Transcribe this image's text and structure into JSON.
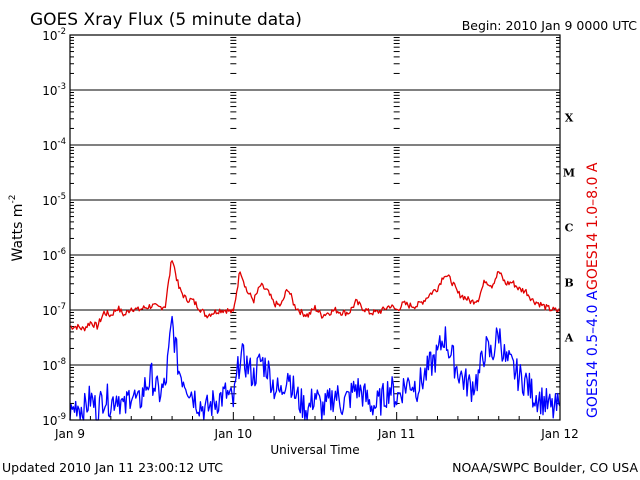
{
  "chart_data": {
    "type": "line",
    "title": "GOES Xray Flux (5 minute data)",
    "begin_label": "Begin:  2010 Jan 9 0000 UTC",
    "xlabel": "Universal Time",
    "ylabel": "Watts m",
    "ylabel_sup": "-2",
    "y_scale": "log",
    "ylim": [
      1e-09,
      0.01
    ],
    "y_ticks": [
      {
        "base": "10",
        "exp": "-2"
      },
      {
        "base": "10",
        "exp": "-3"
      },
      {
        "base": "10",
        "exp": "-4"
      },
      {
        "base": "10",
        "exp": "-5"
      },
      {
        "base": "10",
        "exp": "-6"
      },
      {
        "base": "10",
        "exp": "-7"
      },
      {
        "base": "10",
        "exp": "-8"
      },
      {
        "base": "10",
        "exp": "-9"
      }
    ],
    "x_unit": "hours since 2010 Jan 9 0000 UTC",
    "x_range": [
      0,
      72
    ],
    "x_ticks": [
      {
        "label": "Jan 9",
        "hour": 0
      },
      {
        "label": "Jan 10",
        "hour": 24
      },
      {
        "label": "Jan 11",
        "hour": 48
      },
      {
        "label": "Jan 12",
        "hour": 72
      }
    ],
    "flare_classes": [
      "X",
      "M",
      "C",
      "B",
      "A"
    ],
    "grid": "horizontal at each decade",
    "series": [
      {
        "name": "GOES14 1.0–8.0 A",
        "color": "#e00000",
        "x": [
          0,
          1,
          2,
          3,
          4,
          5,
          6,
          7,
          8,
          9,
          10,
          11,
          12,
          13,
          14,
          15,
          16,
          17,
          18,
          19,
          20,
          21,
          22,
          23,
          24,
          25,
          26,
          27,
          28,
          29,
          30,
          31,
          32,
          33,
          34,
          35,
          36,
          37,
          38,
          39,
          40,
          41,
          42,
          43,
          44,
          45,
          46,
          47,
          48,
          49,
          50,
          51,
          52,
          53,
          54,
          55,
          56,
          57,
          58,
          59,
          60,
          61,
          62,
          63,
          64,
          65,
          66,
          67,
          68,
          69,
          70,
          71,
          72
        ],
        "values": [
          5e-08,
          5e-08,
          4.5e-08,
          6e-08,
          5e-08,
          9e-08,
          8e-08,
          1.1e-07,
          8e-08,
          1.1e-07,
          1e-07,
          1.1e-07,
          1.2e-07,
          1.1e-07,
          1.2e-07,
          9e-07,
          2.5e-07,
          1.6e-07,
          1.5e-07,
          1.1e-07,
          8e-08,
          9e-08,
          1e-07,
          1e-07,
          9e-08,
          5.5e-07,
          2.2e-07,
          1.5e-07,
          2.8e-07,
          2.2e-07,
          1.3e-07,
          1.2e-07,
          2.5e-07,
          1.2e-07,
          9e-08,
          8e-08,
          1.1e-07,
          8e-08,
          9e-08,
          1e-07,
          9e-08,
          9e-08,
          1.4e-07,
          1.1e-07,
          9e-08,
          9e-08,
          1e-07,
          1.2e-07,
          1e-07,
          1.3e-07,
          1.2e-07,
          1.2e-07,
          1.5e-07,
          2e-07,
          2.5e-07,
          4.5e-07,
          3.5e-07,
          2e-07,
          1.7e-07,
          1.4e-07,
          1.6e-07,
          3.5e-07,
          2.8e-07,
          5e-07,
          3e-07,
          3.2e-07,
          2.4e-07,
          2.2e-07,
          1.5e-07,
          1.3e-07,
          1.1e-07,
          1e-07,
          9.5e-08
        ]
      },
      {
        "name": "GOES14 0.5–4.0 A",
        "color": "#0000ff",
        "x": [
          0,
          1,
          2,
          3,
          4,
          5,
          6,
          7,
          8,
          9,
          10,
          11,
          12,
          13,
          14,
          15,
          16,
          17,
          18,
          19,
          20,
          21,
          22,
          23,
          24,
          25,
          26,
          27,
          28,
          29,
          30,
          31,
          32,
          33,
          34,
          35,
          36,
          37,
          38,
          39,
          40,
          41,
          42,
          43,
          44,
          45,
          46,
          47,
          48,
          49,
          50,
          51,
          52,
          53,
          54,
          55,
          56,
          57,
          58,
          59,
          60,
          61,
          62,
          63,
          64,
          65,
          66,
          67,
          68,
          69,
          70,
          71,
          72
        ],
        "values": [
          1.2e-09,
          2e-09,
          1.5e-09,
          2.5e-09,
          1.5e-09,
          2.8e-09,
          2e-09,
          3e-09,
          1.5e-09,
          3.5e-09,
          1.8e-09,
          4e-09,
          6e-09,
          3e-09,
          4e-09,
          6e-08,
          8e-09,
          5e-09,
          3e-09,
          2e-09,
          1.5e-09,
          2e-09,
          2.5e-09,
          3e-09,
          2e-09,
          1.5e-08,
          1e-08,
          6e-09,
          1.2e-08,
          9e-09,
          4e-09,
          3e-09,
          8e-09,
          3e-09,
          2e-09,
          1.5e-09,
          3e-09,
          1.5e-09,
          2e-09,
          3e-09,
          2e-09,
          2.5e-09,
          4e-09,
          3e-09,
          2e-09,
          1.8e-09,
          2.5e-09,
          4e-09,
          2.5e-09,
          4e-09,
          5e-09,
          4e-09,
          6e-09,
          1e-08,
          1.5e-08,
          3.5e-08,
          1.5e-08,
          8e-09,
          5e-09,
          4e-09,
          6e-09,
          2e-08,
          1.5e-08,
          4e-08,
          1.2e-08,
          9e-09,
          6e-09,
          5e-09,
          3e-09,
          2.5e-09,
          2e-09,
          1.5e-09,
          1.8e-09
        ]
      }
    ]
  },
  "footer": {
    "updated": "Updated 2010 Jan 11 23:00:12 UTC",
    "credit": "NOAA/SWPC Boulder, CO USA"
  }
}
